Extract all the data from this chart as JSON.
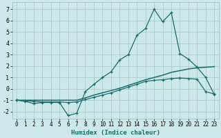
{
  "xlabel": "Humidex (Indice chaleur)",
  "background_color": "#cce8e8",
  "grid_color": "#aacccc",
  "line_color": "#1a6b6b",
  "xlim": [
    -0.5,
    23.5
  ],
  "ylim": [
    -2.6,
    7.6
  ],
  "xticks": [
    0,
    1,
    2,
    3,
    4,
    5,
    6,
    7,
    8,
    9,
    10,
    11,
    12,
    13,
    14,
    15,
    16,
    17,
    18,
    19,
    20,
    21,
    22,
    23
  ],
  "yticks": [
    -2,
    -1,
    0,
    1,
    2,
    3,
    4,
    5,
    6,
    7
  ],
  "line1_x": [
    0,
    1,
    2,
    3,
    4,
    5,
    6,
    7,
    8,
    9,
    10,
    11,
    12,
    13,
    14,
    15,
    16,
    17,
    18,
    19,
    20,
    21,
    22,
    23
  ],
  "line1_y": [
    -1.0,
    -1.1,
    -1.3,
    -1.2,
    -1.2,
    -1.2,
    -2.35,
    -2.15,
    -0.25,
    0.4,
    1.0,
    1.5,
    2.55,
    3.0,
    4.7,
    5.3,
    7.0,
    5.9,
    6.7,
    3.1,
    2.6,
    1.9,
    1.0,
    -0.5
  ],
  "line2_x": [
    0,
    1,
    2,
    3,
    4,
    5,
    6,
    7,
    8,
    9,
    10,
    11,
    12,
    13,
    14,
    15,
    16,
    17,
    18,
    19,
    20,
    21,
    22,
    23
  ],
  "line2_y": [
    -1.0,
    -1.0,
    -1.0,
    -1.0,
    -1.0,
    -1.0,
    -1.0,
    -1.0,
    -0.8,
    -0.55,
    -0.35,
    -0.15,
    0.05,
    0.3,
    0.55,
    0.8,
    1.0,
    1.2,
    1.45,
    1.6,
    1.75,
    1.85,
    1.9,
    1.95
  ],
  "line3_x": [
    0,
    1,
    2,
    3,
    4,
    5,
    6,
    7,
    8,
    9,
    10,
    11,
    12,
    13,
    14,
    15,
    16,
    17,
    18,
    19,
    20,
    21,
    22,
    23
  ],
  "line3_y": [
    -1.0,
    -1.05,
    -1.1,
    -1.15,
    -1.15,
    -1.15,
    -1.2,
    -1.15,
    -0.95,
    -0.75,
    -0.55,
    -0.35,
    -0.1,
    0.15,
    0.4,
    0.65,
    0.75,
    0.8,
    0.9,
    0.95,
    0.9,
    0.85,
    -0.25,
    -0.45
  ]
}
